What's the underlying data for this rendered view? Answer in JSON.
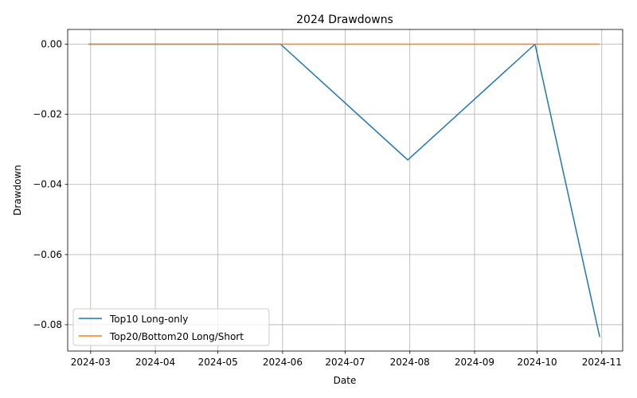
{
  "chart_data": {
    "type": "line",
    "title": "2024 Drawdowns",
    "xlabel": "Date",
    "ylabel": "Drawdown",
    "xlim": [
      "2024-02-19",
      "2024-11-11"
    ],
    "ylim": [
      -0.0875,
      0.0042
    ],
    "x_ticks": [
      "2024-03",
      "2024-04",
      "2024-05",
      "2024-06",
      "2024-07",
      "2024-08",
      "2024-09",
      "2024-10",
      "2024-11"
    ],
    "x_tick_dates": [
      "2024-03-01",
      "2024-04-01",
      "2024-05-01",
      "2024-06-01",
      "2024-07-01",
      "2024-08-01",
      "2024-09-01",
      "2024-10-01",
      "2024-11-01"
    ],
    "y_ticks": [
      0.0,
      -0.02,
      -0.04,
      -0.06,
      -0.08
    ],
    "y_tick_labels": [
      "0.00",
      "−0.02",
      "−0.04",
      "−0.06",
      "−0.08"
    ],
    "grid": true,
    "legend_position": "lower-left",
    "series": [
      {
        "name": "Top10 Long-only",
        "color": "#1f77b4",
        "x": [
          "2024-02-29",
          "2024-03-29",
          "2024-04-30",
          "2024-05-31",
          "2024-07-31",
          "2024-09-30",
          "2024-10-31"
        ],
        "values": [
          0.0,
          0.0,
          0.0,
          0.0,
          -0.033,
          0.0,
          -0.0835
        ]
      },
      {
        "name": "Top20/Bottom20 Long/Short",
        "color": "#ff7f0e",
        "x": [
          "2024-02-29",
          "2024-03-29",
          "2024-04-30",
          "2024-05-31",
          "2024-07-31",
          "2024-09-30",
          "2024-10-31"
        ],
        "values": [
          0.0,
          0.0,
          0.0,
          0.0,
          0.0,
          0.0,
          0.0
        ]
      }
    ]
  }
}
